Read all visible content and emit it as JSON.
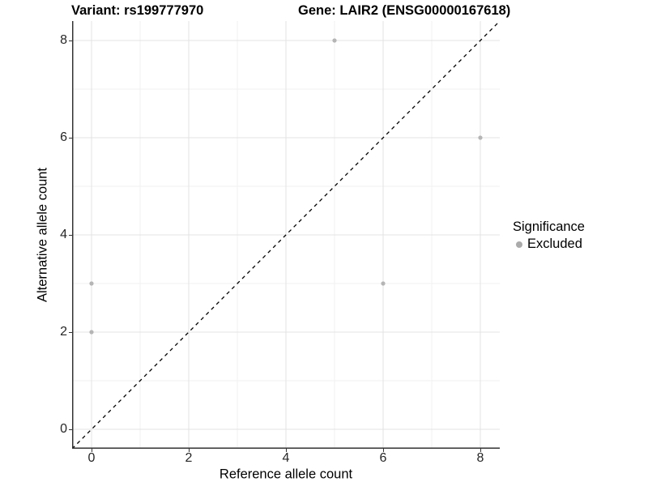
{
  "titles": {
    "variant": "Variant: rs199777970",
    "gene": "Gene: LAIR2 (ENSG00000167618)"
  },
  "legend": {
    "title": "Significance",
    "items": [
      {
        "label": "Excluded",
        "key_color": "#ababab"
      }
    ]
  },
  "colors": {
    "point": "#b5b5b5",
    "legend_key": "#ababab",
    "grid_major": "#e3e3e3",
    "grid_minor": "#f0f0f0",
    "axis_line": "#333333",
    "identity_line": "#000000",
    "tick_text": "#262626"
  },
  "chart_data": {
    "type": "scatter",
    "title_left": "Variant: rs199777970",
    "title_right": "Gene: LAIR2 (ENSG00000167618)",
    "xlabel": "Reference allele count",
    "ylabel": "Alternative allele count",
    "xlim": [
      -0.4,
      8.4
    ],
    "ylim": [
      -0.4,
      8.4
    ],
    "x_ticks": [
      0,
      2,
      4,
      6,
      8
    ],
    "y_ticks": [
      0,
      2,
      4,
      6,
      8
    ],
    "x_minor_ticks": [
      1,
      3,
      5,
      7
    ],
    "y_minor_ticks": [
      1,
      3,
      5,
      7
    ],
    "grid": true,
    "legend_position": "right",
    "identity_line": {
      "style": "dashed",
      "from": [
        -0.4,
        -0.4
      ],
      "to": [
        8.4,
        8.4
      ]
    },
    "series": [
      {
        "name": "Excluded",
        "color": "#b5b5b5",
        "marker": "circle",
        "points": [
          [
            0,
            2
          ],
          [
            0,
            3
          ],
          [
            5,
            8
          ],
          [
            6,
            3
          ],
          [
            8,
            6
          ]
        ]
      }
    ]
  }
}
